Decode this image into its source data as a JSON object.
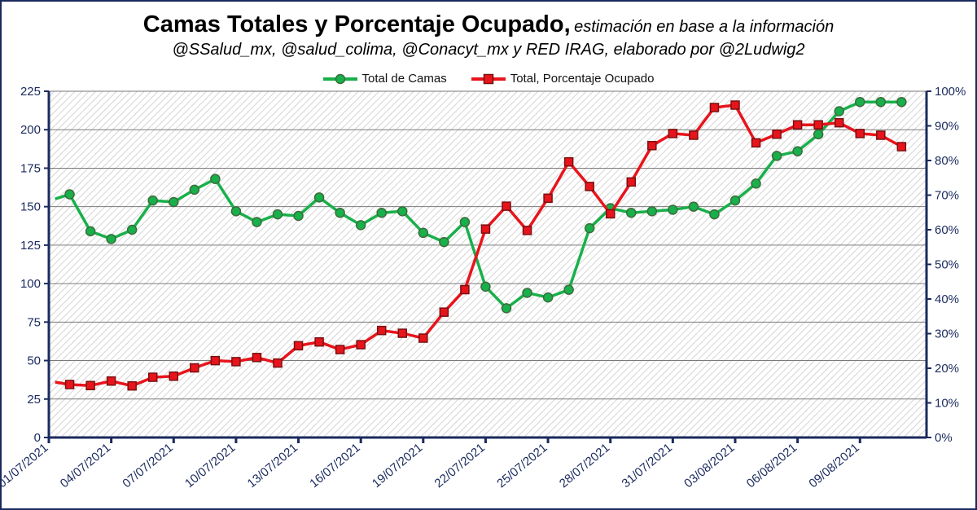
{
  "title": "Camas Totales y Porcentaje Ocupado,",
  "title_note": "estimación en base a la información",
  "subtitle": "@SSalud_mx, @salud_colima, @Conacyt_mx y RED IRAG, elaborado por @2Ludwig2",
  "colors": {
    "green": "#18b04a",
    "red": "#e8141c",
    "axis": "#1a2a5e"
  },
  "chart_data": {
    "type": "line",
    "title": "Camas Totales y Porcentaje Ocupado",
    "x_ticks": [
      "01/07/2021",
      "04/07/2021",
      "07/07/2021",
      "10/07/2021",
      "13/07/2021",
      "16/07/2021",
      "19/07/2021",
      "22/07/2021",
      "25/07/2021",
      "28/07/2021",
      "31/07/2021",
      "03/08/2021",
      "06/08/2021",
      "09/08/2021"
    ],
    "y_left": {
      "min": 0,
      "max": 225,
      "ticks": [
        "0",
        "25",
        "50",
        "75",
        "100",
        "125",
        "150",
        "175",
        "200",
        "225"
      ]
    },
    "y_right": {
      "min": 0,
      "max": 100,
      "ticks": [
        "0%",
        "10%",
        "20%",
        "30%",
        "40%",
        "50%",
        "60%",
        "70%",
        "80%",
        "90%",
        "100%"
      ]
    },
    "grid": true,
    "legend_position": "top-center",
    "series": [
      {
        "name": "Total de Camas",
        "axis": "left",
        "color": "#18b04a",
        "marker": "circle",
        "x": [
          0.3,
          1,
          2,
          3,
          4,
          5,
          6,
          7,
          8,
          9,
          10,
          11,
          12,
          13,
          14,
          15,
          16,
          17,
          18,
          19,
          20,
          21,
          22,
          23,
          24,
          25,
          26,
          27,
          28,
          29,
          30,
          31,
          32,
          33,
          34,
          35,
          36,
          37,
          38,
          39,
          40,
          41
        ],
        "values": [
          155,
          158,
          134,
          129,
          135,
          154,
          153,
          161,
          168,
          147,
          140,
          145,
          144,
          156,
          146,
          138,
          146,
          147,
          133,
          127,
          140,
          98,
          84,
          94,
          91,
          96,
          136,
          149,
          146,
          147,
          148,
          150,
          145,
          154,
          165,
          183,
          186,
          197,
          212,
          218,
          218,
          218
        ]
      },
      {
        "name": "Total, Porcentaje Ocupado",
        "axis": "right",
        "color": "#e8141c",
        "marker": "square",
        "x": [
          0.3,
          1,
          2,
          3,
          4,
          5,
          6,
          7,
          8,
          9,
          10,
          11,
          12,
          13,
          14,
          15,
          16,
          17,
          18,
          19,
          20,
          21,
          22,
          23,
          24,
          25,
          26,
          27,
          28,
          29,
          30,
          31,
          32,
          33,
          34,
          35,
          36,
          37,
          38,
          39,
          40,
          41
        ],
        "values": [
          16,
          15.3,
          15.0,
          16.3,
          14.9,
          17.4,
          17.7,
          20.1,
          22.2,
          21.9,
          23.1,
          21.5,
          26.5,
          27.6,
          25.4,
          26.8,
          30.9,
          30.1,
          28.7,
          36.2,
          42.7,
          60.2,
          66.8,
          59.8,
          69.1,
          79.6,
          72.5,
          64.6,
          73.8,
          84.3,
          87.8,
          87.3,
          95.3,
          96.0,
          85.1,
          87.6,
          90.3,
          90.3,
          90.9,
          87.8,
          87.3,
          84.0
        ]
      }
    ]
  }
}
